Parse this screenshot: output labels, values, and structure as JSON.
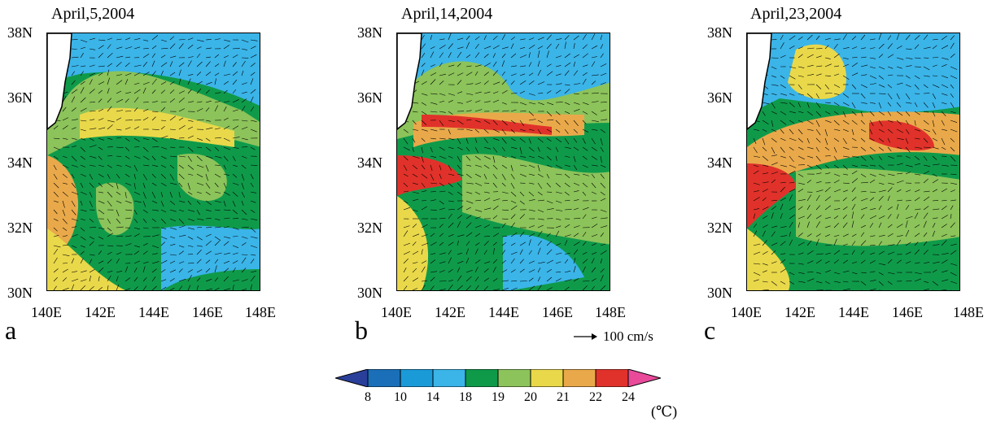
{
  "panels": [
    {
      "id": "a",
      "date": "April,5,2004"
    },
    {
      "id": "b",
      "date": "April,14,2004"
    },
    {
      "id": "c",
      "date": "April,23,2004"
    }
  ],
  "lat_labels": [
    "38N",
    "36N",
    "34N",
    "32N",
    "30N"
  ],
  "lon_labels": [
    "140E",
    "142E",
    "144E",
    "146E",
    "148E"
  ],
  "reference_vector": {
    "label": "100 cm/s"
  },
  "colorbar": {
    "ticks": [
      "8",
      "10",
      "14",
      "18",
      "19",
      "20",
      "21",
      "22",
      "24"
    ],
    "unit": "(℃)",
    "colors": [
      "#2a3f9a",
      "#1a6fb8",
      "#1b9ad8",
      "#3bb4e8",
      "#0f9a4a",
      "#8cc35a",
      "#e9d84a",
      "#e9a94a",
      "#e0322a",
      "#e94a9a"
    ]
  },
  "colors": {
    "sst_cold": "#3bb4e8",
    "sst_mid": "#0f9a4a",
    "sst_warm": "#8cc35a",
    "sst_hot": "#e0322a",
    "land": "#ffffff",
    "vectors": "#000000"
  }
}
